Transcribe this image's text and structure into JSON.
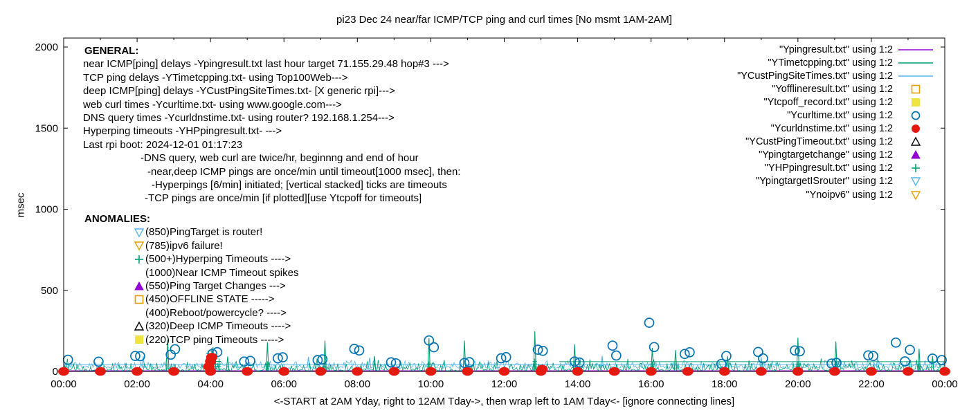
{
  "title": "pi23 Dec 24  near/far ICMP/TCP ping and curl times [No msmt 1AM-2AM]",
  "xlabel": "<-START at 2AM Yday, right to 12AM Tday->, then wrap left to 1AM Tday<- [ignore connecting lines]",
  "ylabel": "msec",
  "general": {
    "heading": "GENERAL:",
    "lines": [
      {
        "indent": 0,
        "text": "near ICMP[ping] delays -Ypingresult.txt last hour target 71.155.29.48 hop#3 --->"
      },
      {
        "indent": 0,
        "text": "TCP ping delays -YTimetcpping.txt- using Top100Web--->"
      },
      {
        "indent": 0,
        "text": "deep ICMP[ping] delays -YCustPingSiteTimes.txt- [X generic rpi]--->"
      },
      {
        "indent": 0,
        "text": "web curl times -Ycurltime.txt- using www.google.com--->"
      },
      {
        "indent": 0,
        "text": "DNS query times -Ycurldnstime.txt- using router? 192.168.1.254--->"
      },
      {
        "indent": 0,
        "text": "Hyperping timeouts -YHPpingresult.txt- --->"
      },
      {
        "indent": 0,
        "text": "Last rpi boot: 2024-12-01 01:17:23"
      },
      {
        "indent": 83,
        "text": "-DNS query, web curl are twice/hr, beginnng and end of hour"
      },
      {
        "indent": 93,
        "text": "-near,deep ICMP pings are once/min until timeout[1000 msec], then:"
      },
      {
        "indent": 99,
        "text": "-Hyperpings [6/min] initiated; [vertical stacked] ticks are timeouts"
      },
      {
        "indent": 89,
        "text": "-TCP pings are once/min [if plotted][use Ytcpoff for timeouts]"
      }
    ]
  },
  "anomalies": {
    "heading": "ANOMALIES:",
    "items": [
      {
        "marker": "triangle-down-open",
        "color": "#56b4e9",
        "text": "(850)PingTarget is router!"
      },
      {
        "marker": "triangle-down-open",
        "color": "#e69f00",
        "text": "(785)ipv6 failure!"
      },
      {
        "marker": "plus",
        "color": "#009e73",
        "text": "(500+)Hyperping Timeouts ---->"
      },
      {
        "marker": "none",
        "color": "",
        "text": "(1000)Near ICMP Timeout spikes"
      },
      {
        "marker": "triangle-up-filled",
        "color": "#9400d3",
        "text": "(550)Ping Target Changes --->"
      },
      {
        "marker": "square-open",
        "color": "#e69f00",
        "text": "(450)OFFLINE STATE ----->"
      },
      {
        "marker": "none",
        "color": "",
        "text": "(400)Reboot/powercycle? ---->"
      },
      {
        "marker": "triangle-up-open",
        "color": "#000000",
        "text": "(320)Deep ICMP Timeouts ---->"
      },
      {
        "marker": "square-filled",
        "color": "#f0e442",
        "text": "(220)TCP ping Timeouts ----->"
      }
    ]
  },
  "legend": [
    {
      "label": "\"Ypingresult.txt\" using 1:2",
      "marker": "line",
      "color": "#9400d3"
    },
    {
      "label": "\"YTimetcpping.txt\" using 1:2",
      "marker": "line",
      "color": "#009e73"
    },
    {
      "label": "\"YCustPingSiteTimes.txt\" using 1:2",
      "marker": "line",
      "color": "#56b4e9"
    },
    {
      "label": "\"Yofflineresult.txt\" using 1:2",
      "marker": "square-open",
      "color": "#e69f00"
    },
    {
      "label": "\"Ytcpoff_record.txt\" using 1:2",
      "marker": "square-filled",
      "color": "#f0e442"
    },
    {
      "label": "\"Ycurltime.txt\" using 1:2",
      "marker": "circle-open",
      "color": "#0072b2"
    },
    {
      "label": "\"Ycurldnstime.txt\" using 1:2",
      "marker": "circle-filled",
      "color": "#e4190f"
    },
    {
      "label": "\"YCustPingTimeout.txt\" using 1:2",
      "marker": "triangle-up-open",
      "color": "#000000"
    },
    {
      "label": "\"Ypingtargetchange\" using 1:2",
      "marker": "triangle-up-filled",
      "color": "#9400d3"
    },
    {
      "label": "\"YHPpingresult.txt\" using 1:2",
      "marker": "plus",
      "color": "#009e73"
    },
    {
      "label": "\"YpingtargetISrouter\" using 1:2",
      "marker": "triangle-down-open",
      "color": "#56b4e9"
    },
    {
      "label": "\"Ynoipv6\" using 1:2",
      "marker": "triangle-down-open",
      "color": "#e69f00"
    }
  ],
  "chart_data": {
    "type": "line",
    "title": "pi23 Dec 24  near/far ICMP/TCP ping and curl times [No msmt 1AM-2AM]",
    "xlabel": "<-START at 2AM Yday, right to 12AM Tday->, then wrap left to 1AM Tday<- [ignore connecting lines]",
    "ylabel": "msec",
    "ylim": [
      0,
      2000
    ],
    "y_ticks": [
      0,
      500,
      1000,
      1500,
      2000
    ],
    "x_ticks": [
      "00:00",
      "02:00",
      "04:00",
      "06:00",
      "08:00",
      "10:00",
      "12:00",
      "14:00",
      "16:00",
      "18:00",
      "20:00",
      "22:00",
      "00:00"
    ],
    "x_tick_step_min": 120,
    "x_minor_step_min": 60,
    "x_span_min": 1440,
    "grid": false,
    "legend_position": "top-right-inside",
    "series": [
      {
        "name": "Ypingresult.txt",
        "style": "line",
        "color": "#9400d3",
        "render": "flat",
        "value": 4
      },
      {
        "name": "YCustPingSiteTimes.txt",
        "style": "line",
        "color": "#56b4e9",
        "render": "noise",
        "seed": 7,
        "base": 18,
        "band": 40,
        "connect_value": 42,
        "connect_from": "00:00",
        "connect_to": "24:00",
        "spikes": [
          [
            "02:10",
            95
          ],
          [
            "06:40",
            90
          ],
          [
            "08:20",
            85
          ],
          [
            "14:40",
            95
          ],
          [
            "19:00",
            88
          ],
          [
            "22:10",
            80
          ]
        ]
      },
      {
        "name": "YTimetcpping.txt",
        "style": "line",
        "color": "#009e73",
        "render": "noise",
        "seed": 3,
        "base": 2,
        "band": 50,
        "connect_value": 60,
        "connect_from": "13:30",
        "connect_to": "24:00",
        "spikes": [
          [
            "02:50",
            195
          ],
          [
            "04:04",
            148
          ],
          [
            "04:28",
            92
          ],
          [
            "05:33",
            180
          ],
          [
            "07:07",
            190
          ],
          [
            "08:28",
            95
          ],
          [
            "09:57",
            205
          ],
          [
            "10:55",
            190
          ],
          [
            "12:50",
            248
          ],
          [
            "13:55",
            168
          ],
          [
            "16:02",
            145
          ],
          [
            "16:40",
            132
          ],
          [
            "18:05",
            95
          ],
          [
            "20:00",
            208
          ],
          [
            "21:02",
            185
          ],
          [
            "23:18",
            140
          ],
          [
            "23:40",
            95
          ]
        ]
      },
      {
        "name": "YHPpingresult.txt",
        "style": "ticks",
        "color": "#009e73",
        "clusters": [
          [
            "03:56",
            7
          ],
          [
            "04:02",
            8
          ],
          [
            "04:08",
            6
          ],
          [
            "04:14",
            4
          ],
          [
            "05:33",
            3
          ],
          [
            "07:07",
            3
          ],
          [
            "09:57",
            3
          ],
          [
            "12:50",
            4
          ],
          [
            "16:02",
            3
          ],
          [
            "20:00",
            3
          ],
          [
            "21:02",
            3
          ],
          [
            "23:18",
            2
          ]
        ]
      },
      {
        "name": "Ycurltime.txt",
        "style": "scatter",
        "marker": "circle-open",
        "color": "#0072b2",
        "points": [
          [
            "00:07",
            72
          ],
          [
            "00:57",
            60
          ],
          [
            "01:57",
            95
          ],
          [
            "02:05",
            94
          ],
          [
            "02:55",
            103
          ],
          [
            "03:02",
            137
          ],
          [
            "04:03",
            108
          ],
          [
            "04:11",
            119
          ],
          [
            "04:55",
            61
          ],
          [
            "05:05",
            65
          ],
          [
            "05:50",
            81
          ],
          [
            "05:58",
            87
          ],
          [
            "06:55",
            70
          ],
          [
            "07:03",
            74
          ],
          [
            "07:55",
            139
          ],
          [
            "08:03",
            129
          ],
          [
            "08:55",
            56
          ],
          [
            "09:03",
            50
          ],
          [
            "09:57",
            191
          ],
          [
            "10:05",
            149
          ],
          [
            "10:55",
            52
          ],
          [
            "11:03",
            57
          ],
          [
            "11:55",
            81
          ],
          [
            "12:03",
            88
          ],
          [
            "12:55",
            134
          ],
          [
            "13:03",
            127
          ],
          [
            "13:55",
            61
          ],
          [
            "14:03",
            55
          ],
          [
            "14:57",
            159
          ],
          [
            "15:03",
            98
          ],
          [
            "15:57",
            300
          ],
          [
            "16:05",
            150
          ],
          [
            "16:55",
            108
          ],
          [
            "17:03",
            118
          ],
          [
            "17:55",
            46
          ],
          [
            "18:03",
            95
          ],
          [
            "18:55",
            120
          ],
          [
            "19:03",
            80
          ],
          [
            "19:55",
            129
          ],
          [
            "20:03",
            124
          ],
          [
            "20:55",
            48
          ],
          [
            "21:03",
            53
          ],
          [
            "21:55",
            99
          ],
          [
            "22:03",
            95
          ],
          [
            "22:40",
            178
          ],
          [
            "22:55",
            62
          ],
          [
            "23:03",
            133
          ],
          [
            "23:40",
            79
          ],
          [
            "23:55",
            70
          ]
        ]
      },
      {
        "name": "Ycurldnstime.txt",
        "style": "scatter",
        "marker": "circle-filled",
        "color": "#e4190f",
        "points": [
          [
            "00:00",
            0
          ],
          [
            "01:00",
            0
          ],
          [
            "02:00",
            0
          ],
          [
            "03:00",
            0
          ],
          [
            "03:57",
            30
          ],
          [
            "04:00",
            62
          ],
          [
            "04:02",
            88
          ],
          [
            "04:00",
            0
          ],
          [
            "05:00",
            0
          ],
          [
            "06:00",
            0
          ],
          [
            "07:00",
            0
          ],
          [
            "08:00",
            0
          ],
          [
            "09:00",
            0
          ],
          [
            "10:00",
            0
          ],
          [
            "11:00",
            0
          ],
          [
            "12:00",
            0
          ],
          [
            "13:00",
            0
          ],
          [
            "13:02",
            14
          ],
          [
            "14:00",
            0
          ],
          [
            "15:00",
            0
          ],
          [
            "16:00",
            0
          ],
          [
            "17:00",
            0
          ],
          [
            "18:00",
            0
          ],
          [
            "19:00",
            0
          ],
          [
            "20:00",
            0
          ],
          [
            "21:00",
            0
          ],
          [
            "22:00",
            0
          ],
          [
            "23:00",
            0
          ],
          [
            "24:00",
            0
          ]
        ]
      }
    ]
  }
}
